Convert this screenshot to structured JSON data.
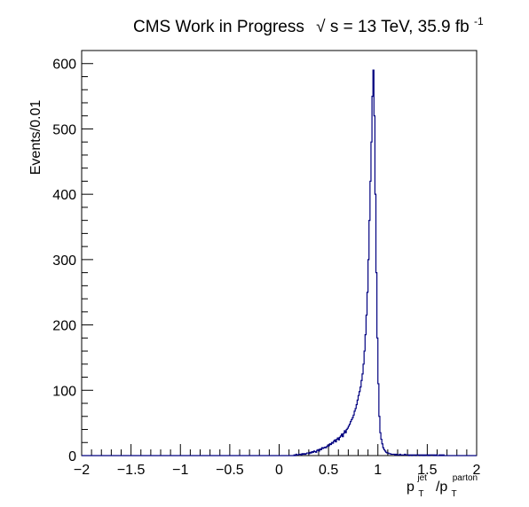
{
  "chart_data": {
    "type": "histogram",
    "title_parts": {
      "main": "CMS Work in Progress",
      "sqrt": "√",
      "energy": "s = 13 TeV, 35.9 fb",
      "exponent": "-1"
    },
    "ylabel": "Events/0.01",
    "xlabel_parts": {
      "p1": "p",
      "sup1": "jet",
      "sub1": "T",
      "slash": "/p",
      "sup2": "parton",
      "sub2": "T"
    },
    "xlim": [
      -2,
      2
    ],
    "ylim": [
      0,
      620
    ],
    "bin_width": 0.01,
    "x_ticks": [
      {
        "value": -2,
        "label": "−2"
      },
      {
        "value": -1.5,
        "label": "−1.5"
      },
      {
        "value": -1,
        "label": "−1"
      },
      {
        "value": -0.5,
        "label": "−0.5"
      },
      {
        "value": 0,
        "label": "0"
      },
      {
        "value": 0.5,
        "label": "0.5"
      },
      {
        "value": 1,
        "label": "1"
      },
      {
        "value": 1.5,
        "label": "1.5"
      },
      {
        "value": 2,
        "label": "2"
      }
    ],
    "y_ticks": [
      {
        "value": 0,
        "label": "0"
      },
      {
        "value": 100,
        "label": "100"
      },
      {
        "value": 200,
        "label": "200"
      },
      {
        "value": 300,
        "label": "300"
      },
      {
        "value": 400,
        "label": "400"
      },
      {
        "value": 500,
        "label": "500"
      },
      {
        "value": 600,
        "label": "600"
      }
    ],
    "line_color": "#000080",
    "series": [
      {
        "bin_low_edge_start": 0.15,
        "values": [
          1,
          0,
          2,
          1,
          1,
          2,
          2,
          1,
          3,
          2,
          3,
          2,
          3,
          4,
          4,
          3,
          5,
          4,
          6,
          5,
          7,
          6,
          5,
          8,
          9,
          7,
          10,
          9,
          12,
          11,
          12,
          13,
          12,
          14,
          16,
          15,
          18,
          17,
          20,
          19,
          22,
          24,
          21,
          25,
          27,
          24,
          28,
          30,
          33,
          29,
          34,
          38,
          35,
          40,
          42,
          45,
          48,
          52,
          55,
          58,
          62,
          68,
          72,
          78,
          85,
          92,
          98,
          105,
          115,
          125,
          140,
          160,
          185,
          215,
          250,
          300,
          360,
          420,
          480,
          550,
          590,
          520,
          400,
          280,
          180,
          110,
          60,
          35,
          25,
          18,
          12,
          9,
          7,
          5,
          4,
          4,
          3,
          3,
          2,
          2,
          2,
          2,
          1,
          2,
          1,
          1,
          1,
          2,
          1,
          1,
          1,
          1,
          2,
          1,
          1,
          1,
          0,
          1,
          1,
          0,
          1,
          1,
          1,
          0,
          1,
          1,
          1,
          0,
          1,
          1,
          0,
          1,
          0,
          1,
          1,
          0,
          1,
          0,
          1,
          1,
          1,
          0,
          1,
          0,
          1,
          0,
          0,
          1,
          0,
          1,
          0,
          1
        ]
      }
    ]
  }
}
